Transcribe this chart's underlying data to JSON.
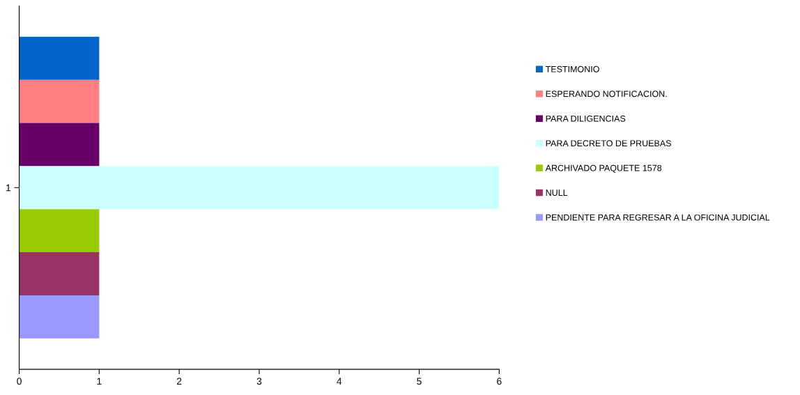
{
  "chart_data": {
    "type": "bar",
    "orientation": "horizontal",
    "categories": [
      "1"
    ],
    "series": [
      {
        "name": "TESTIMONIO",
        "color": "#0066cc",
        "values": [
          1
        ]
      },
      {
        "name": "ESPERANDO NOTIFICACION.",
        "color": "#ff8080",
        "values": [
          1
        ]
      },
      {
        "name": "PARA DILIGENCIAS",
        "color": "#660066",
        "values": [
          1
        ]
      },
      {
        "name": "PARA DECRETO DE PRUEBAS",
        "color": "#ccffff",
        "values": [
          6
        ]
      },
      {
        "name": "ARCHIVADO PAQUETE 1578",
        "color": "#99cc00",
        "values": [
          1
        ]
      },
      {
        "name": "NULL",
        "color": "#993366",
        "values": [
          1
        ]
      },
      {
        "name": "PENDIENTE PARA REGRESAR A LA OFICINA JUDICIAL",
        "color": "#9999ff",
        "values": [
          1
        ]
      }
    ],
    "xlim": [
      0,
      6
    ],
    "xticks": [
      0,
      1,
      2,
      3,
      4,
      5,
      6
    ],
    "grid": false,
    "legend": "right"
  }
}
